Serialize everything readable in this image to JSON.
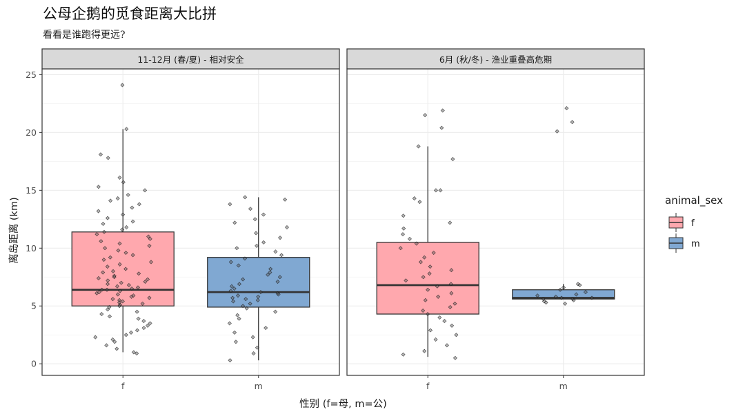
{
  "chart_data": {
    "type": "boxplot",
    "title": "公母企鹅的觅食距离大比拼",
    "subtitle": "看看是谁跑得更远?",
    "xlabel": "性别 (f=母, m=公)",
    "ylabel": "离岛距离 (km)",
    "ylim": [
      -1,
      25.5
    ],
    "yticks": [
      0,
      5,
      10,
      15,
      20,
      25
    ],
    "categories": [
      "f",
      "m"
    ],
    "legend": {
      "title": "animal_sex",
      "placement": "right",
      "entries": [
        {
          "label": "f",
          "color": "#F8766D"
        },
        {
          "label": "m",
          "color": "#3C78B9"
        }
      ]
    },
    "colors": {
      "f_fill": "#FFA8AE",
      "m_fill": "#80A8D2",
      "strip_bg": "#D9D9D9",
      "grid": "#EBEBEB"
    },
    "panels": [
      {
        "strip": "11-12月 (春/夏) - 相对安全",
        "boxes": [
          {
            "category": "f",
            "min": 1.0,
            "q1": 5.0,
            "median": 6.4,
            "q3": 11.4,
            "max": 20.3
          },
          {
            "category": "m",
            "min": 0.3,
            "q1": 4.9,
            "median": 6.2,
            "q3": 9.2,
            "max": 14.4
          }
        ],
        "points": [
          {
            "category": "f",
            "values": [
              24.1,
              20.3,
              18.1,
              17.8,
              16.1,
              15.7,
              15.3,
              15.0,
              14.6,
              14.3,
              14.1,
              13.8,
              13.5,
              13.2,
              12.9,
              12.6,
              12.3,
              12.1,
              11.8,
              11.6,
              11.4,
              11.2,
              11.0,
              10.8,
              10.6,
              10.4,
              10.2,
              10.0,
              9.8,
              9.6,
              9.4,
              9.2,
              9.0,
              8.8,
              8.6,
              8.4,
              8.2,
              8.0,
              7.9,
              7.8,
              7.6,
              7.5,
              7.4,
              7.3,
              7.2,
              7.1,
              7.0,
              6.9,
              6.8,
              6.7,
              6.6,
              6.5,
              6.4,
              6.4,
              6.3,
              6.2,
              6.1,
              6.0,
              5.9,
              5.8,
              5.7,
              5.6,
              5.5,
              5.4,
              5.3,
              5.2,
              5.1,
              5.0,
              4.9,
              4.7,
              4.5,
              4.3,
              4.1,
              3.9,
              3.7,
              3.5,
              3.3,
              3.1,
              2.9,
              2.7,
              2.5,
              2.3,
              2.1,
              1.9,
              1.6,
              1.3,
              1.0,
              0.9
            ]
          },
          {
            "category": "m",
            "values": [
              14.4,
              14.2,
              13.8,
              13.4,
              12.9,
              12.5,
              12.2,
              11.8,
              11.3,
              10.9,
              10.5,
              10.2,
              10.0,
              9.7,
              9.4,
              9.1,
              8.8,
              8.5,
              8.2,
              7.9,
              7.7,
              7.5,
              7.3,
              7.1,
              6.9,
              6.7,
              6.5,
              6.3,
              6.2,
              6.1,
              6.0,
              5.9,
              5.8,
              5.7,
              5.6,
              5.5,
              5.4,
              5.2,
              5.0,
              4.8,
              4.5,
              4.2,
              3.9,
              3.5,
              3.1,
              2.7,
              2.3,
              1.9,
              1.4,
              0.9,
              0.3
            ]
          }
        ]
      },
      {
        "strip": "6月 (秋/冬) - 渔业重叠高危期",
        "boxes": [
          {
            "category": "f",
            "min": 0.6,
            "q1": 4.3,
            "median": 6.8,
            "q3": 10.5,
            "max": 18.8
          },
          {
            "category": "m",
            "min": 5.6,
            "q1": 5.6,
            "median": 5.7,
            "q3": 6.4,
            "max": 6.9
          }
        ],
        "points": [
          {
            "category": "f",
            "values": [
              21.9,
              21.5,
              20.4,
              18.8,
              17.7,
              15.0,
              15.0,
              14.3,
              14.0,
              12.8,
              12.2,
              11.7,
              11.2,
              10.8,
              10.4,
              10.0,
              9.6,
              9.2,
              8.8,
              8.4,
              8.1,
              7.8,
              7.5,
              7.2,
              6.9,
              6.7,
              6.4,
              6.1,
              5.8,
              5.5,
              5.2,
              4.9,
              4.6,
              4.3,
              4.0,
              3.7,
              3.3,
              2.9,
              2.5,
              2.1,
              1.6,
              1.1,
              0.8,
              0.5
            ]
          },
          {
            "category": "m",
            "values": [
              22.1,
              20.9,
              20.1,
              6.9,
              6.8,
              6.6,
              6.4,
              6.2,
              6.0,
              5.9,
              5.8,
              5.7,
              5.7,
              5.6,
              5.6,
              5.5,
              5.4,
              5.3,
              5.2
            ]
          }
        ]
      }
    ]
  }
}
